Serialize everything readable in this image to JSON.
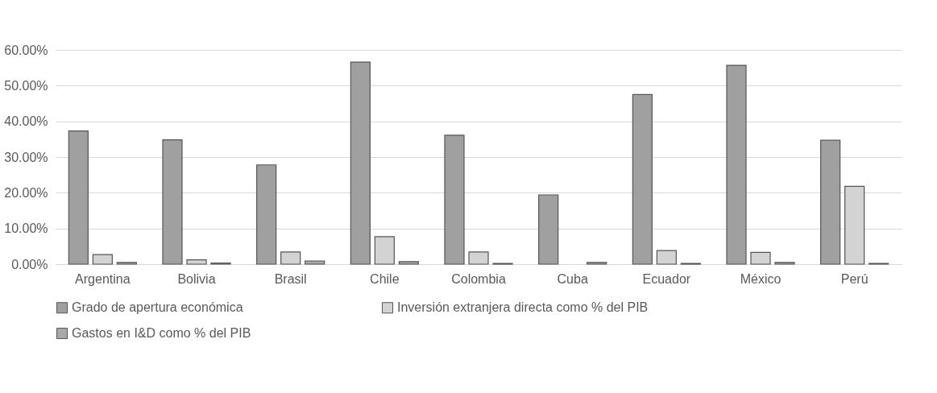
{
  "chart_data": {
    "type": "bar",
    "categories": [
      "Argentina",
      "Bolivia",
      "Brasil",
      "Chile",
      "Colombia",
      "Cuba",
      "Ecuador",
      "México",
      "Perú"
    ],
    "series": [
      {
        "name": "Grado de apertura económica",
        "color": "#a0a0a0",
        "values": [
          37.3,
          34.8,
          27.8,
          56.6,
          36.1,
          19.4,
          47.5,
          55.7,
          34.7
        ]
      },
      {
        "name": "Inversión extranjera directa como % del PIB",
        "color": "#d3d3d3",
        "values": [
          2.7,
          1.2,
          3.4,
          7.7,
          3.4,
          null,
          3.8,
          3.3,
          21.8
        ]
      },
      {
        "name": "Gastos en I&D como % del PIB",
        "color": "#a8a8a8",
        "values": [
          0.5,
          0.3,
          0.9,
          0.7,
          0.2,
          0.5,
          0.2,
          0.5,
          0.2
        ]
      }
    ],
    "ylim": [
      0,
      60
    ],
    "yticks": [
      {
        "value": 0,
        "label": "0.00%"
      },
      {
        "value": 10,
        "label": "10.00%"
      },
      {
        "value": 20,
        "label": "20.00%"
      },
      {
        "value": 30,
        "label": "30.00%"
      },
      {
        "value": 40,
        "label": "40.00%"
      },
      {
        "value": 50,
        "label": "50.00%"
      },
      {
        "value": 60,
        "label": "60.00%"
      }
    ],
    "grid": "y",
    "legend": "bottom"
  }
}
